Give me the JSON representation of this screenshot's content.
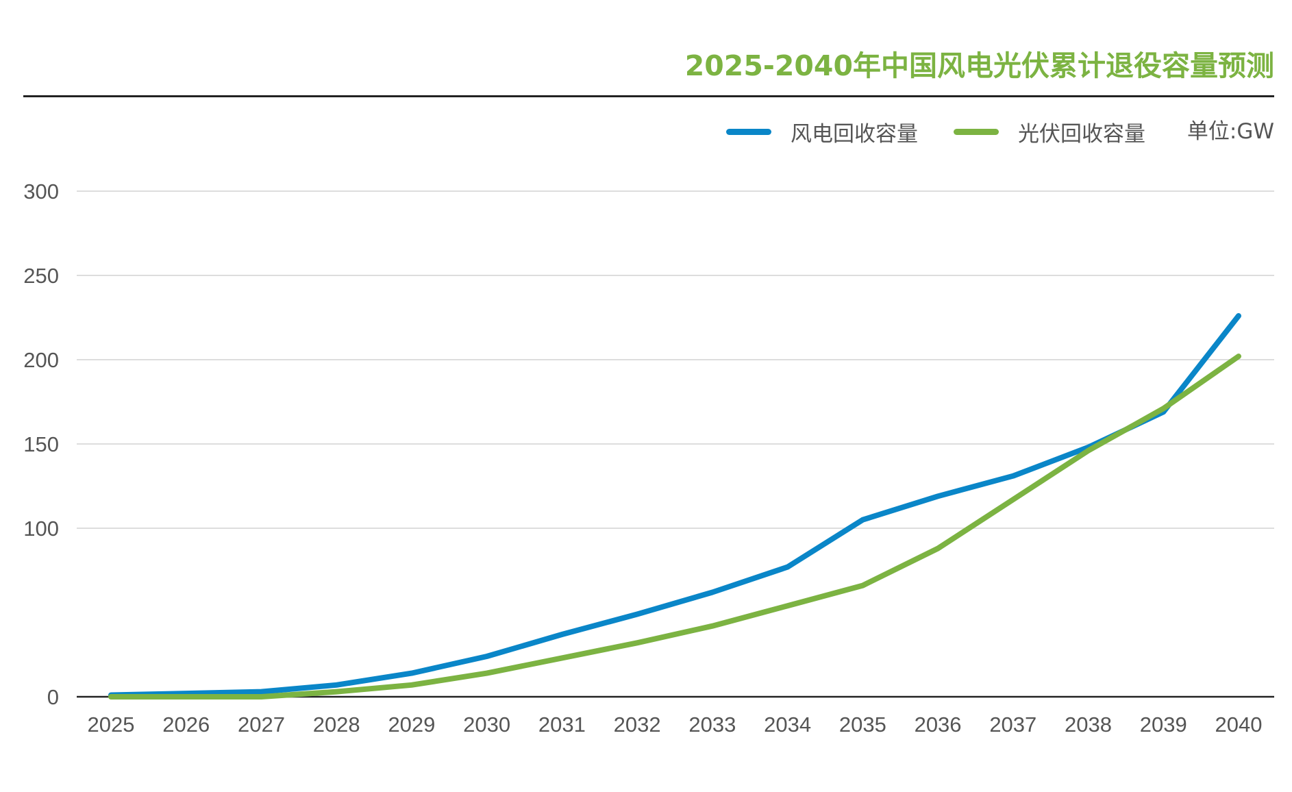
{
  "chart_data": {
    "type": "line",
    "title": "2025-2040年中国风电光伏累计退役容量预测",
    "unit": "单位:GW",
    "categories": [
      "2025",
      "2026",
      "2027",
      "2028",
      "2029",
      "2030",
      "2031",
      "2032",
      "2033",
      "2034",
      "2035",
      "2036",
      "2037",
      "2038",
      "2039",
      "2040"
    ],
    "series": [
      {
        "name": "风电回收容量",
        "color": "#0a86c8",
        "values": [
          1,
          2,
          3,
          7,
          14,
          24,
          37,
          49,
          62,
          77,
          105,
          119,
          131,
          148,
          169,
          226
        ]
      },
      {
        "name": "光伏回收容量",
        "color": "#7cb342",
        "values": [
          0,
          0,
          0,
          3,
          7,
          14,
          23,
          32,
          42,
          54,
          66,
          88,
          117,
          146,
          171,
          202
        ]
      }
    ],
    "yticks": [
      0,
      100,
      150,
      200,
      250,
      300
    ],
    "ylim": [
      0,
      300
    ],
    "grid": true,
    "legend": "top-right",
    "xlabel": "",
    "ylabel": ""
  }
}
